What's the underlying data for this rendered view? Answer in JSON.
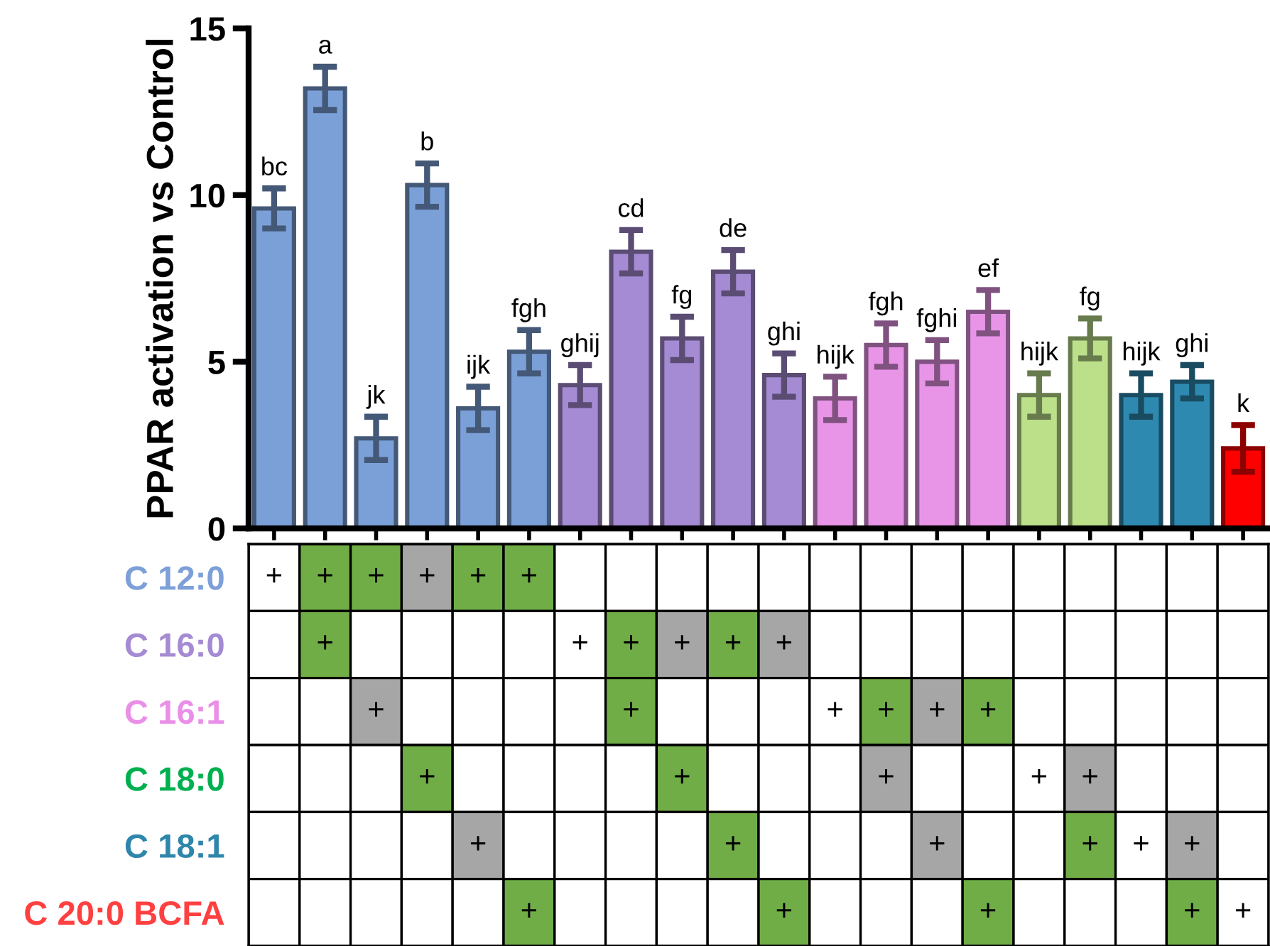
{
  "chart_data": [
    {
      "type": "bar",
      "ylabel": "PPAR activation vs Control",
      "categories": [
        null,
        null,
        null,
        null,
        null,
        null,
        null,
        null,
        null,
        null,
        null,
        null,
        null,
        null,
        null,
        null,
        null,
        null,
        null,
        null
      ],
      "values": [
        9.6,
        13.2,
        2.7,
        10.3,
        3.6,
        5.3,
        4.3,
        8.3,
        5.7,
        7.7,
        4.6,
        3.9,
        5.5,
        5.0,
        6.5,
        4.0,
        5.7,
        4.0,
        4.4,
        2.4
      ],
      "errors": [
        0.6,
        0.65,
        0.65,
        0.65,
        0.65,
        0.65,
        0.6,
        0.65,
        0.65,
        0.65,
        0.65,
        0.65,
        0.65,
        0.65,
        0.65,
        0.65,
        0.6,
        0.65,
        0.5,
        0.7
      ],
      "colors": [
        "#7ba0d8",
        "#7ba0d8",
        "#7ba0d8",
        "#7ba0d8",
        "#7ba0d8",
        "#7ba0d8",
        "#a58bd3",
        "#a58bd3",
        "#a58bd3",
        "#a58bd3",
        "#a58bd3",
        "#e895e8",
        "#e895e8",
        "#e895e8",
        "#e895e8",
        "#bcdf8a",
        "#bcdf8a",
        "#2e89b0",
        "#2e89b0",
        "#ff0000"
      ],
      "value_labels": [
        "bc",
        "a",
        "jk",
        "b",
        "ijk",
        "fgh",
        "ghij",
        "cd",
        "fg",
        "de",
        "ghi",
        "hijk",
        "fgh",
        "fghi",
        "ef",
        "hijk",
        "fg",
        "hijk",
        "ghi",
        "k"
      ],
      "ylim": [
        0,
        15
      ],
      "yticks": [
        0,
        5,
        10,
        15
      ],
      "grid": false,
      "legend": false
    },
    {
      "type": "heatmap",
      "categories": [
        null,
        null,
        null,
        null,
        null,
        null,
        null,
        null,
        null,
        null,
        null,
        null,
        null,
        null,
        null,
        null,
        null,
        null,
        null,
        null
      ],
      "y_categories": [
        "C 12:0",
        "C 16:0",
        "C 16:1",
        "C 18:0",
        "C 18:1",
        "C 20:0 BCFA"
      ],
      "colors": [
        [
          "#ffffff",
          "#70ad47",
          "#70ad47",
          "#a6a6a6",
          "#70ad47",
          "#70ad47",
          null,
          null,
          null,
          null,
          null,
          null,
          null,
          null,
          null,
          null,
          null,
          null,
          null,
          null
        ],
        [
          null,
          "#70ad47",
          null,
          null,
          null,
          null,
          "#ffffff",
          "#70ad47",
          "#a6a6a6",
          "#70ad47",
          "#a6a6a6",
          null,
          null,
          null,
          null,
          null,
          null,
          null,
          null,
          null
        ],
        [
          null,
          null,
          "#a6a6a6",
          null,
          null,
          null,
          null,
          "#70ad47",
          null,
          null,
          null,
          "#ffffff",
          "#70ad47",
          "#a6a6a6",
          "#70ad47",
          null,
          null,
          null,
          null,
          null
        ],
        [
          null,
          null,
          null,
          "#70ad47",
          null,
          null,
          null,
          null,
          "#70ad47",
          null,
          null,
          null,
          "#a6a6a6",
          null,
          null,
          "#ffffff",
          "#a6a6a6",
          null,
          null,
          null
        ],
        [
          null,
          null,
          null,
          null,
          "#a6a6a6",
          null,
          null,
          null,
          null,
          "#70ad47",
          null,
          null,
          null,
          "#a6a6a6",
          null,
          null,
          "#70ad47",
          "#ffffff",
          "#a6a6a6",
          null
        ],
        [
          null,
          null,
          null,
          null,
          null,
          "#70ad47",
          null,
          null,
          null,
          null,
          "#70ad47",
          null,
          null,
          null,
          "#70ad47",
          null,
          null,
          null,
          "#70ad47",
          "#ffffff"
        ]
      ],
      "cells": [
        [
          null,
          null,
          null,
          null,
          null,
          null,
          null,
          null,
          null,
          null,
          null,
          null,
          null,
          null,
          null,
          null,
          null,
          null,
          null,
          null
        ],
        [
          null,
          null,
          null,
          null,
          null,
          null,
          null,
          null,
          null,
          null,
          null,
          null,
          null,
          null,
          null,
          null,
          null,
          null,
          null,
          null
        ],
        [
          null,
          null,
          null,
          null,
          null,
          null,
          null,
          null,
          null,
          null,
          null,
          null,
          null,
          null,
          null,
          null,
          null,
          null,
          null,
          null
        ],
        [
          null,
          null,
          null,
          null,
          null,
          null,
          null,
          null,
          null,
          null,
          null,
          null,
          null,
          null,
          null,
          null,
          null,
          null,
          null,
          null
        ],
        [
          null,
          null,
          null,
          null,
          null,
          null,
          null,
          null,
          null,
          null,
          null,
          null,
          null,
          null,
          null,
          null,
          null,
          null,
          null,
          null
        ],
        [
          null,
          null,
          null,
          null,
          null,
          null,
          null,
          null,
          null,
          null,
          null,
          null,
          null,
          null,
          null,
          null,
          null,
          null,
          null,
          null
        ]
      ],
      "cell_labels": [
        [
          "+",
          "+",
          "+",
          "+",
          "+",
          "+",
          null,
          null,
          null,
          null,
          null,
          null,
          null,
          null,
          null,
          null,
          null,
          null,
          null,
          null
        ],
        [
          null,
          "+",
          null,
          null,
          null,
          null,
          "+",
          "+",
          "+",
          "+",
          "+",
          null,
          null,
          null,
          null,
          null,
          null,
          null,
          null,
          null
        ],
        [
          null,
          null,
          "+",
          null,
          null,
          null,
          null,
          "+",
          null,
          null,
          null,
          "+",
          "+",
          "+",
          "+",
          null,
          null,
          null,
          null,
          null
        ],
        [
          null,
          null,
          null,
          "+",
          null,
          null,
          null,
          null,
          "+",
          null,
          null,
          null,
          "+",
          null,
          null,
          "+",
          "+",
          null,
          null,
          null
        ],
        [
          null,
          null,
          null,
          null,
          "+",
          null,
          null,
          null,
          null,
          "+",
          null,
          null,
          null,
          "+",
          null,
          null,
          "+",
          "+",
          "+",
          null
        ],
        [
          null,
          null,
          null,
          null,
          null,
          "+",
          null,
          null,
          null,
          null,
          "+",
          null,
          null,
          null,
          "+",
          null,
          null,
          null,
          "+",
          "+"
        ]
      ]
    }
  ]
}
